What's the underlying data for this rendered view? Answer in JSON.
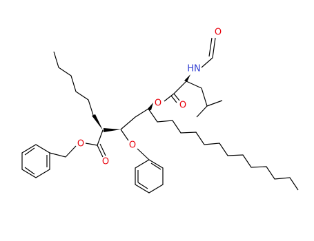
{
  "atoms": [
    {
      "label": "O"
    },
    {
      "label": "HN"
    },
    {
      "label": "O"
    },
    {
      "label": "O"
    },
    {
      "label": "O"
    },
    {
      "label": "O"
    },
    {
      "label": "O"
    }
  ]
}
